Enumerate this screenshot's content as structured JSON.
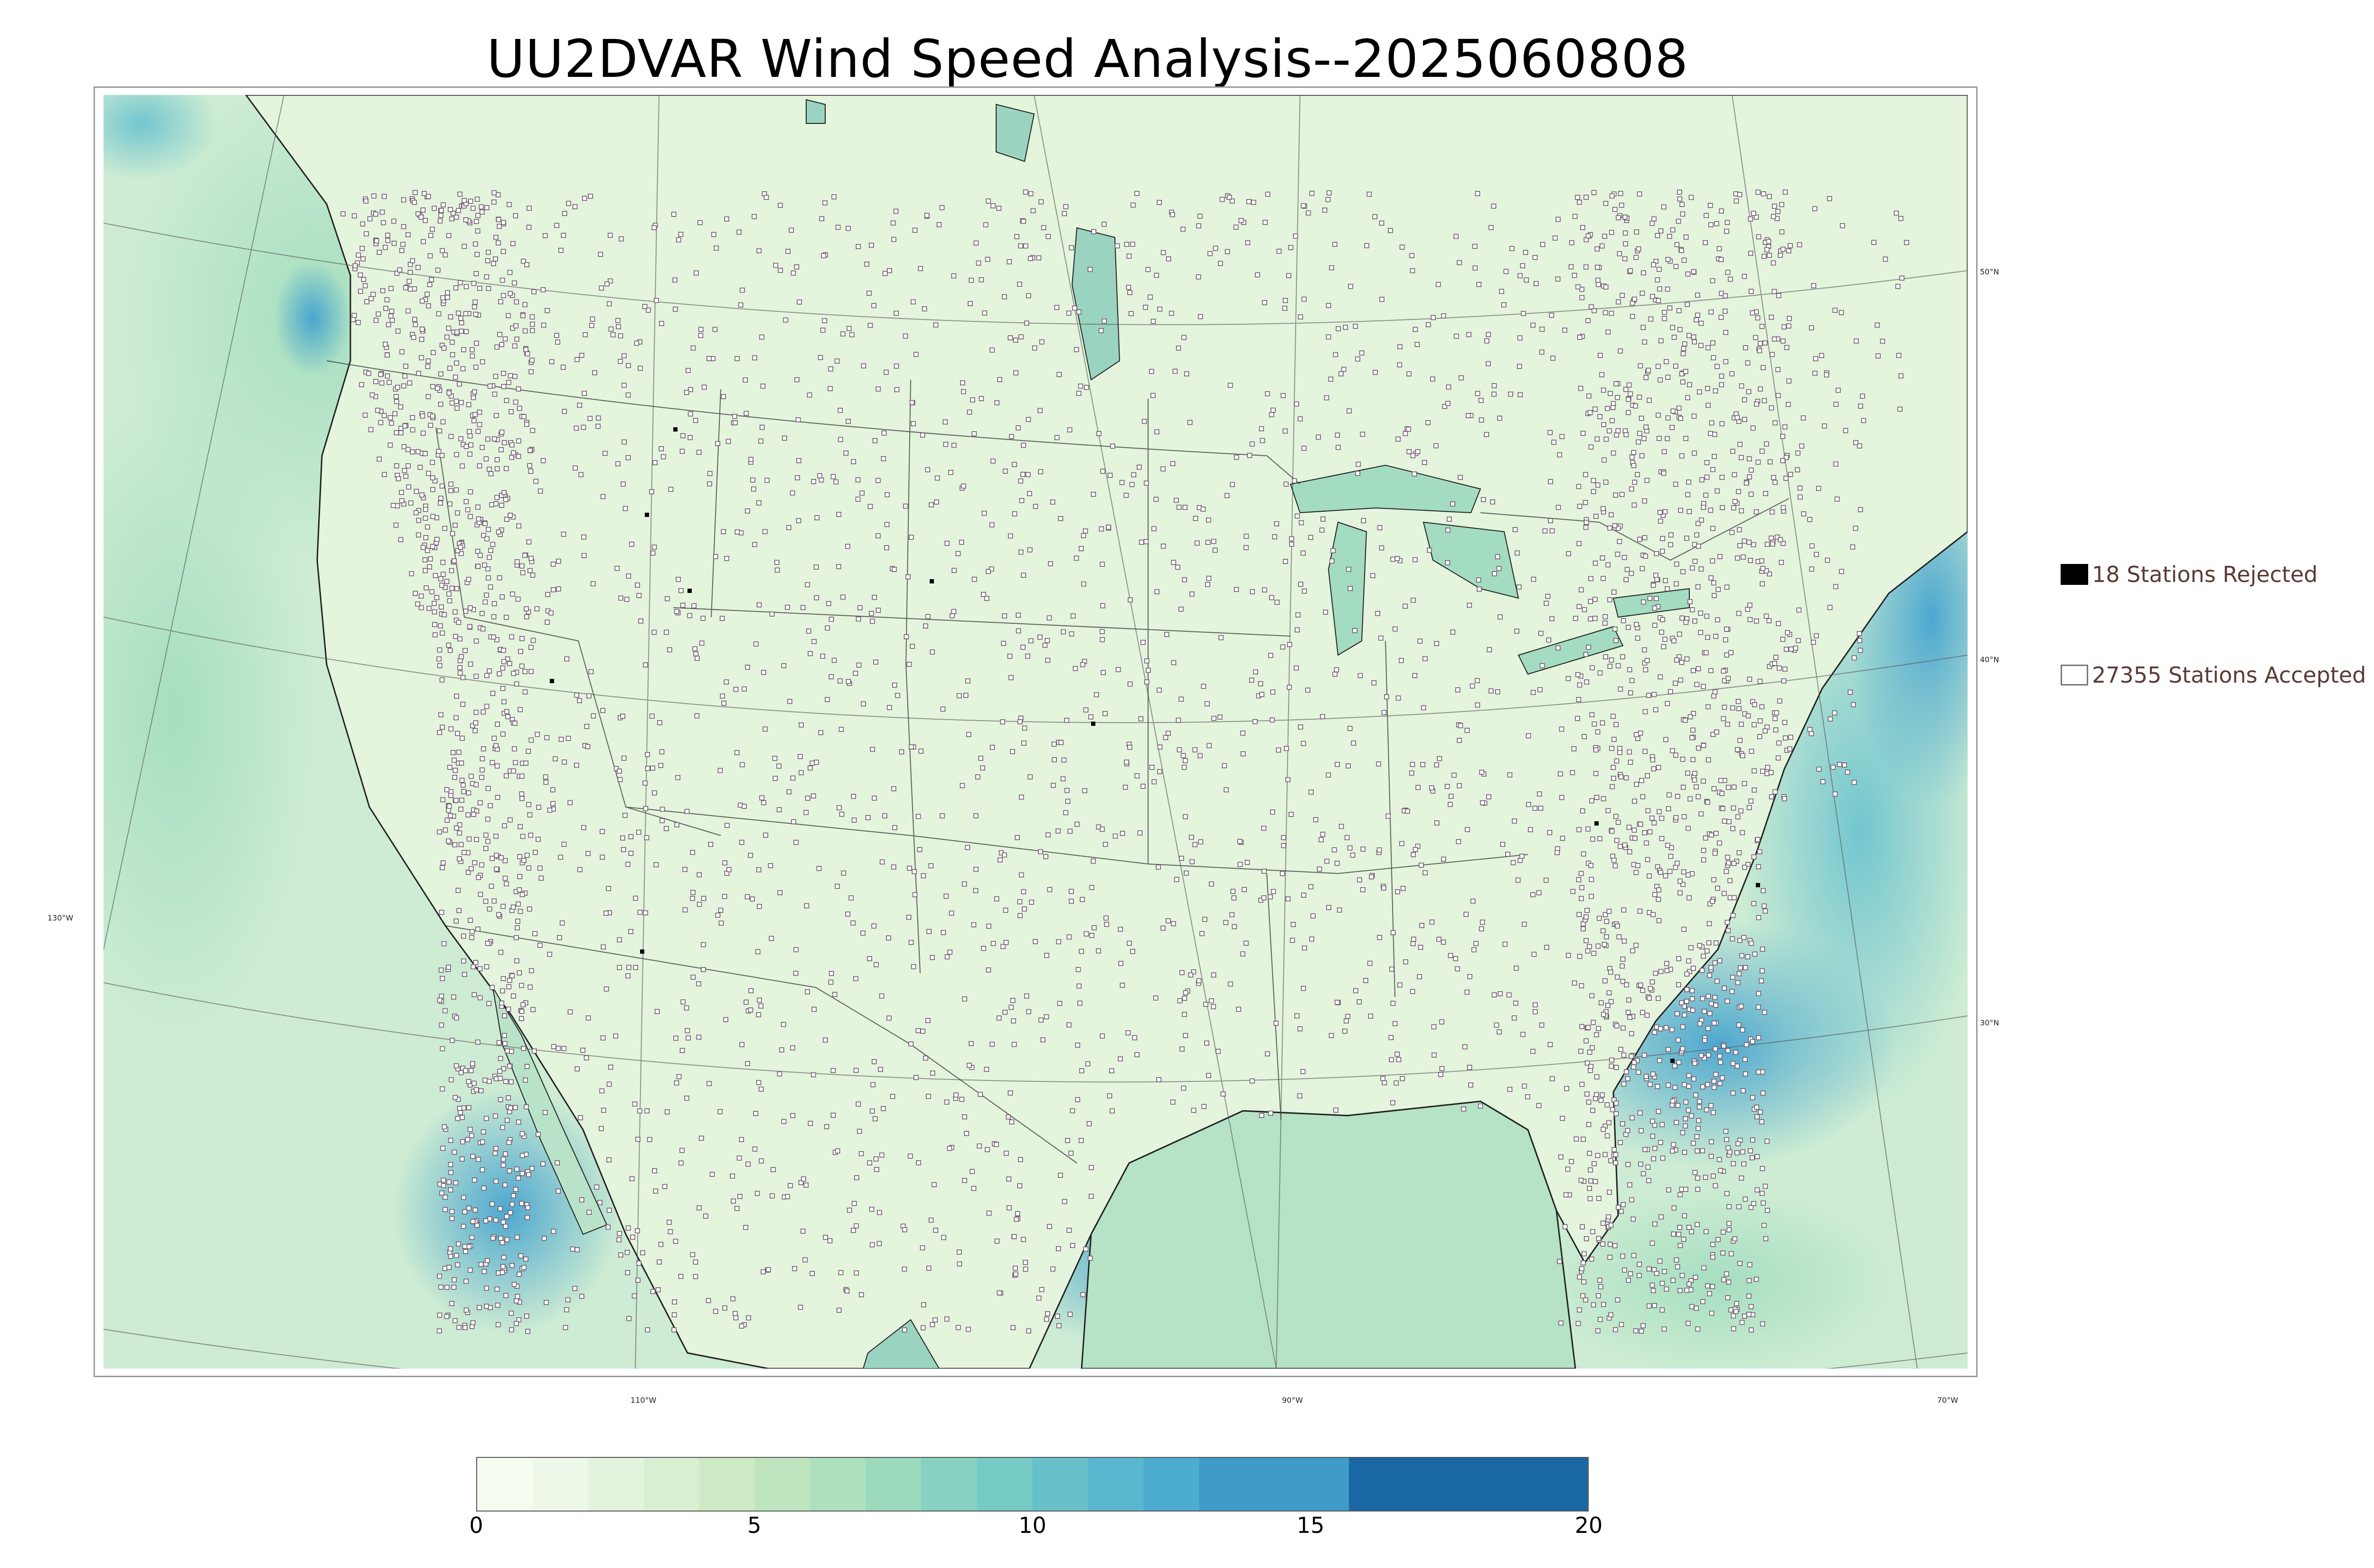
{
  "title": "UU2DVAR Wind Speed Analysis--2025060808",
  "map": {
    "lat_labels": [
      "50°N",
      "40°N",
      "30°N"
    ],
    "lon_labels": [
      "130°W",
      "110°W",
      "90°W",
      "70°W"
    ]
  },
  "legend": {
    "rejected_label": "18 Stations Rejected",
    "accepted_label": "27355 Stations Accepted"
  },
  "colorbar": {
    "ticks": [
      "0",
      "5",
      "10",
      "15",
      "20"
    ],
    "min": 0,
    "max": 20,
    "bands": [
      {
        "from": 0,
        "to": 1,
        "color": "#f7fcf0"
      },
      {
        "from": 1,
        "to": 2,
        "color": "#eef8e9"
      },
      {
        "from": 2,
        "to": 3,
        "color": "#e3f4de"
      },
      {
        "from": 3,
        "to": 4,
        "color": "#d8efd1"
      },
      {
        "from": 4,
        "to": 5,
        "color": "#cdeac5"
      },
      {
        "from": 5,
        "to": 6,
        "color": "#bfe5be"
      },
      {
        "from": 6,
        "to": 7,
        "color": "#ade0bc"
      },
      {
        "from": 7,
        "to": 8,
        "color": "#9ad9bc"
      },
      {
        "from": 8,
        "to": 9,
        "color": "#86d1c0"
      },
      {
        "from": 9,
        "to": 10,
        "color": "#76cac4"
      },
      {
        "from": 10,
        "to": 11,
        "color": "#67c1cb"
      },
      {
        "from": 11,
        "to": 12,
        "color": "#59b8d0"
      },
      {
        "from": 12,
        "to": 13,
        "color": "#4cadd1"
      },
      {
        "from": 13,
        "to": 15.7,
        "color": "#3f9bc9"
      },
      {
        "from": 15.7,
        "to": 20,
        "color": "#1a68a3"
      }
    ]
  },
  "colors": {
    "land": "#e6f5df",
    "ocean": "#cfedd5",
    "windy": "#5cb9d3",
    "very_windy": "#1a68a3",
    "station_outline": "#6e5b6b"
  }
}
